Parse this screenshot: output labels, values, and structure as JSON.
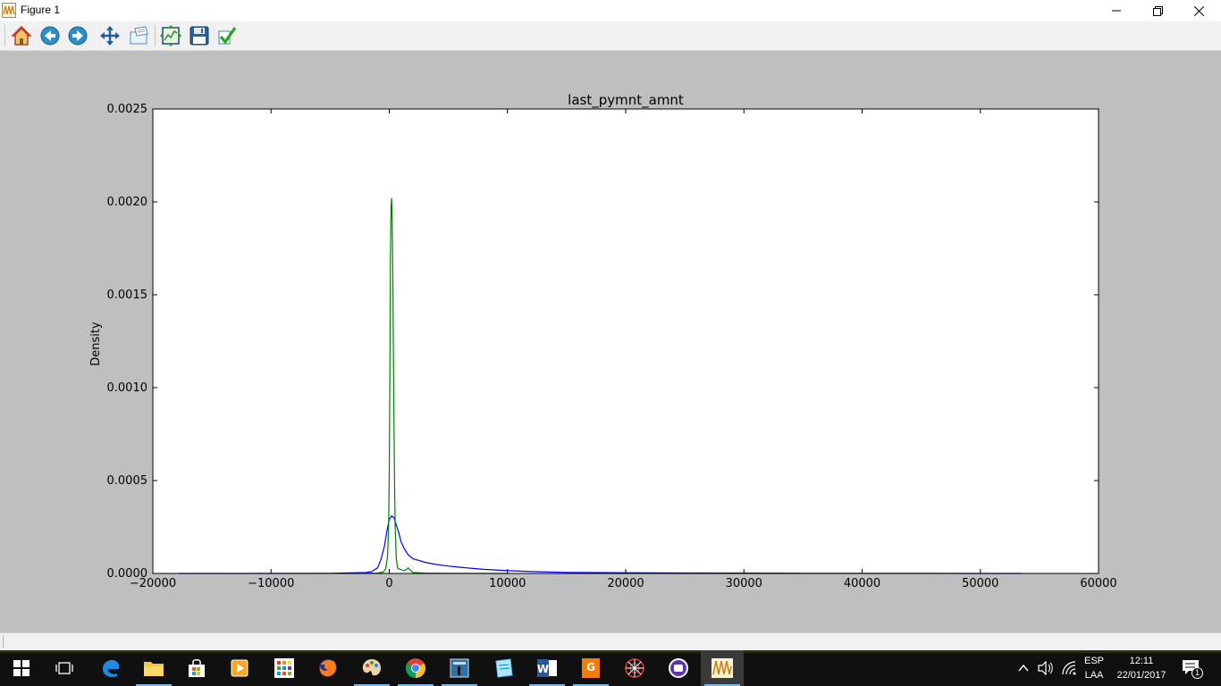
{
  "window": {
    "title": "Figure 1",
    "controls": {
      "minimize": "—",
      "maximize": "❐",
      "close": "✕"
    }
  },
  "toolbar": {
    "buttons": [
      {
        "name": "home-button",
        "icon": "home-icon",
        "tooltip": "Reset original view"
      },
      {
        "name": "back-button",
        "icon": "back-arrow-icon",
        "tooltip": "Back to previous view"
      },
      {
        "name": "forward-button",
        "icon": "forward-arrow-icon",
        "tooltip": "Forward to next view"
      },
      {
        "name": "pan-button",
        "icon": "pan-arrows-icon",
        "tooltip": "Pan axes"
      },
      {
        "name": "zoom-button",
        "icon": "zoom-rect-icon",
        "tooltip": "Zoom to rectangle"
      },
      {
        "name": "subplots-button",
        "icon": "subplots-icon",
        "tooltip": "Configure subplots"
      },
      {
        "name": "save-button",
        "icon": "floppy-disk-icon",
        "tooltip": "Save the figure"
      },
      {
        "name": "edit-button",
        "icon": "checkmark-icon",
        "tooltip": "Edit curves line and axes parameters"
      }
    ]
  },
  "chart_data": {
    "type": "line",
    "title": "last_pymnt_amnt",
    "xlabel": "",
    "ylabel": "Density",
    "xlim": [
      -20000,
      60000
    ],
    "ylim": [
      0,
      0.0025
    ],
    "xticks": [
      -20000,
      -10000,
      0,
      10000,
      20000,
      30000,
      40000,
      50000,
      60000
    ],
    "xtick_labels": [
      "−20000",
      "−10000",
      "0",
      "10000",
      "20000",
      "30000",
      "40000",
      "50000",
      "60000"
    ],
    "yticks": [
      0,
      0.0005,
      0.001,
      0.0015,
      0.002,
      0.0025
    ],
    "ytick_labels": [
      "0.0000",
      "0.0005",
      "0.0010",
      "0.0015",
      "0.0020",
      "0.0025"
    ],
    "grid": false,
    "series": [
      {
        "color": "#0000ff",
        "x": [
          -17800,
          -5000,
          -2000,
          -1500,
          -1000,
          -700,
          -400,
          -200,
          0,
          200,
          400,
          600,
          800,
          1000,
          1300,
          1600,
          2000,
          2500,
          3000,
          4000,
          5000,
          6000,
          8000,
          10000,
          12000,
          15000,
          20000,
          25000,
          30000,
          35000,
          40000,
          45000,
          50000,
          53500
        ],
        "y": [
          0,
          5e-07,
          5e-06,
          1e-05,
          3e-05,
          7.5e-05,
          0.00015,
          0.00023,
          0.00029,
          0.00031,
          0.0003,
          0.00026,
          0.00022,
          0.00017,
          0.00013,
          0.0001,
          8e-05,
          7e-05,
          6e-05,
          4.8e-05,
          4e-05,
          3.3e-05,
          2.2e-05,
          1.5e-05,
          1e-05,
          6e-06,
          4e-06,
          2.5e-06,
          1.8e-06,
          1.2e-06,
          8e-07,
          5e-07,
          2e-07,
          0
        ]
      },
      {
        "color": "#008000",
        "x": [
          -3000,
          -1000,
          -500,
          -300,
          -150,
          -50,
          0,
          50,
          100,
          150,
          200,
          250,
          300,
          350,
          400,
          450,
          500,
          600,
          700,
          800,
          1000,
          1300,
          1600,
          2000,
          3000,
          5000,
          10000
        ],
        "y": [
          0,
          2e-06,
          8e-06,
          2.5e-05,
          9e-05,
          0.00025,
          0.00055,
          0.0011,
          0.0017,
          0.00198,
          0.00202,
          0.0019,
          0.0016,
          0.0012,
          0.0008,
          0.00045,
          0.00025,
          8e-05,
          3e-05,
          2.5e-05,
          2e-05,
          1.5e-05,
          3e-05,
          5e-06,
          2e-06,
          5e-07,
          0
        ]
      }
    ]
  },
  "statusbar": {
    "text": ""
  },
  "taskbar": {
    "items": [
      {
        "name": "start-button",
        "icon": "windows-logo-icon"
      },
      {
        "name": "task-view-button",
        "icon": "task-view-icon"
      },
      {
        "name": "edge-app",
        "icon": "edge-icon"
      },
      {
        "name": "file-explorer-app",
        "icon": "folder-icon",
        "running": true
      },
      {
        "name": "store-app",
        "icon": "store-bag-icon"
      },
      {
        "name": "media-player-app",
        "icon": "media-player-icon"
      },
      {
        "name": "app-launcher-app",
        "icon": "grid-apps-icon"
      },
      {
        "name": "firefox-app",
        "icon": "firefox-icon"
      },
      {
        "name": "paint-app",
        "icon": "palette-icon",
        "running": true
      },
      {
        "name": "chrome-app",
        "icon": "chrome-icon",
        "running": true
      },
      {
        "name": "python-ide-app",
        "icon": "ide-icon",
        "running": true
      },
      {
        "name": "notes-app",
        "icon": "notes-icon"
      },
      {
        "name": "word-app",
        "icon": "word-icon",
        "running": true
      },
      {
        "name": "pdf-app",
        "icon": "pdf-icon",
        "running": true
      },
      {
        "name": "spider-app",
        "icon": "spider-web-icon"
      },
      {
        "name": "bot-app",
        "icon": "bot-icon"
      },
      {
        "name": "figure-app",
        "icon": "plot-wave-icon",
        "running": true,
        "active": true
      }
    ],
    "tray": {
      "language_top": "ESP",
      "language_bottom": "LAA",
      "time": "12:11",
      "date": "22/01/2017",
      "notification_count": "1"
    }
  }
}
